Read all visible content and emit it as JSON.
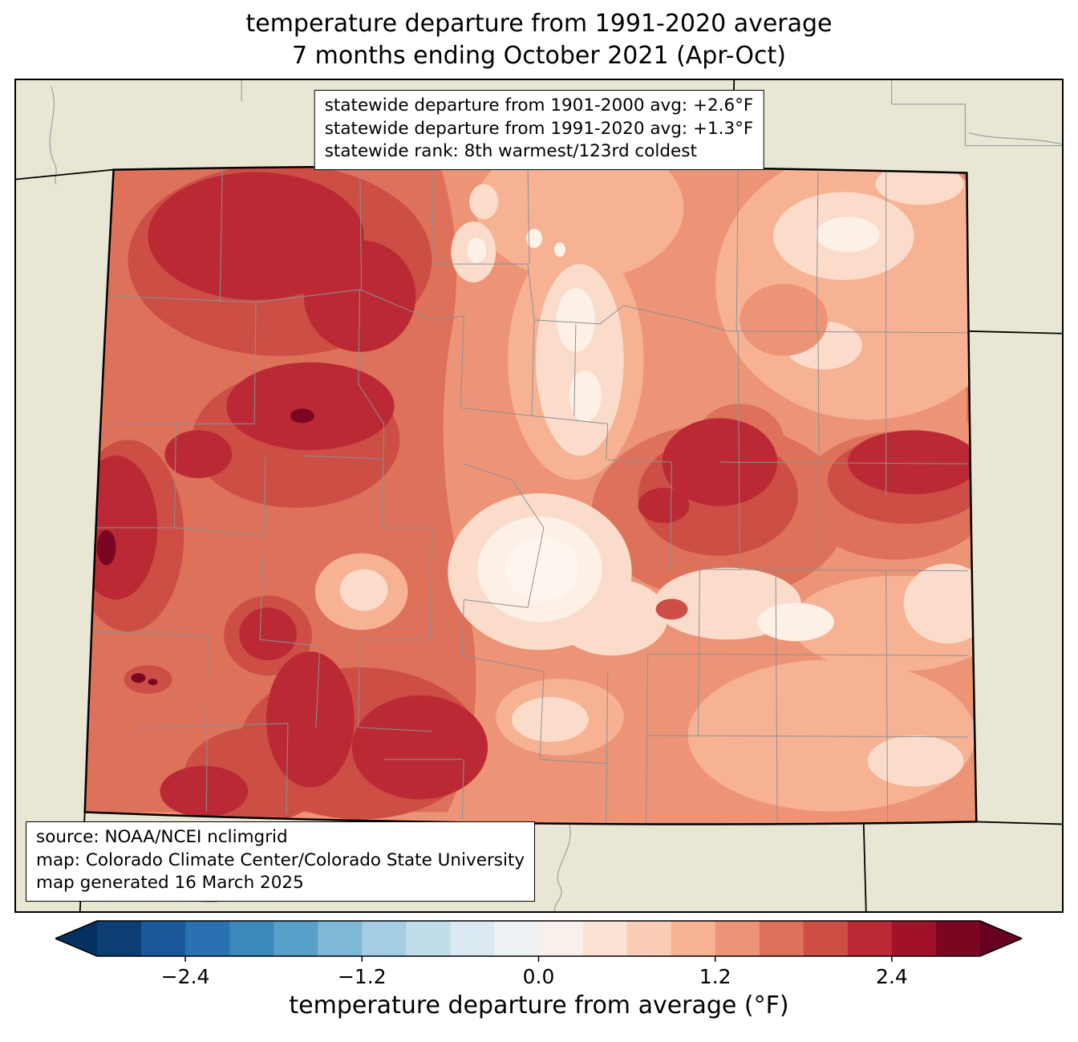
{
  "title": {
    "line1": "temperature departure from 1991-2020 average",
    "line2": "7 months ending October 2021 (Apr-Oct)"
  },
  "stats_box": {
    "lines": [
      "statewide departure from 1901-2000 avg: +2.6°F",
      "statewide departure from 1991-2020 avg: +1.3°F",
      "statewide rank: 8th warmest/123rd coldest"
    ]
  },
  "source_box": {
    "lines": [
      "source: NOAA/NCEI nclimgrid",
      "map: Colorado Climate Center/Colorado State University",
      "map generated 16 March 2025"
    ]
  },
  "map": {
    "region_label": "Colorado",
    "background_color": "#e9e6d3",
    "county_line_color": "#8b9196",
    "state_border_color": "#000000"
  },
  "colorbar": {
    "label": "temperature departure from average (°F)",
    "range": [
      -3.0,
      3.0
    ],
    "ticks": [
      {
        "value": -2.4,
        "label": "−2.4"
      },
      {
        "value": -1.2,
        "label": "−1.2"
      },
      {
        "value": 0.0,
        "label": "0.0"
      },
      {
        "value": 1.2,
        "label": "1.2"
      },
      {
        "value": 2.4,
        "label": "2.4"
      }
    ],
    "segment_colors": [
      "#0c3e74",
      "#1a5999",
      "#2a71b2",
      "#3b88bd",
      "#57a0ca",
      "#7eb8d7",
      "#a2cde2",
      "#c1ddeb",
      "#dae9f1",
      "#edf2f5",
      "#f8f0eb",
      "#fbe2d3",
      "#fbcdb6",
      "#f6b293",
      "#ec9475",
      "#dd715a",
      "#cd4e45",
      "#bb2a34",
      "#9f1228",
      "#7a0622"
    ],
    "under_color": "#053061",
    "over_color": "#67001f"
  },
  "chart_data": {
    "type": "heatmap",
    "title": "temperature departure from 1991-2020 average, 7 months ending October 2021 (Apr-Oct)",
    "region": "Colorado",
    "units": "°F",
    "colorbar_label": "temperature departure from average (°F)",
    "colorbar_ticks": [
      -2.4,
      -1.2,
      0.0,
      1.2,
      2.4
    ],
    "colorbar_range": [
      -3.0,
      3.0
    ],
    "statewide_departure_from_1901_2000_avg_F": 2.6,
    "statewide_departure_from_1991_2020_avg_F": 1.3,
    "statewide_rank": "8th warmest/123rd coldest"
  }
}
